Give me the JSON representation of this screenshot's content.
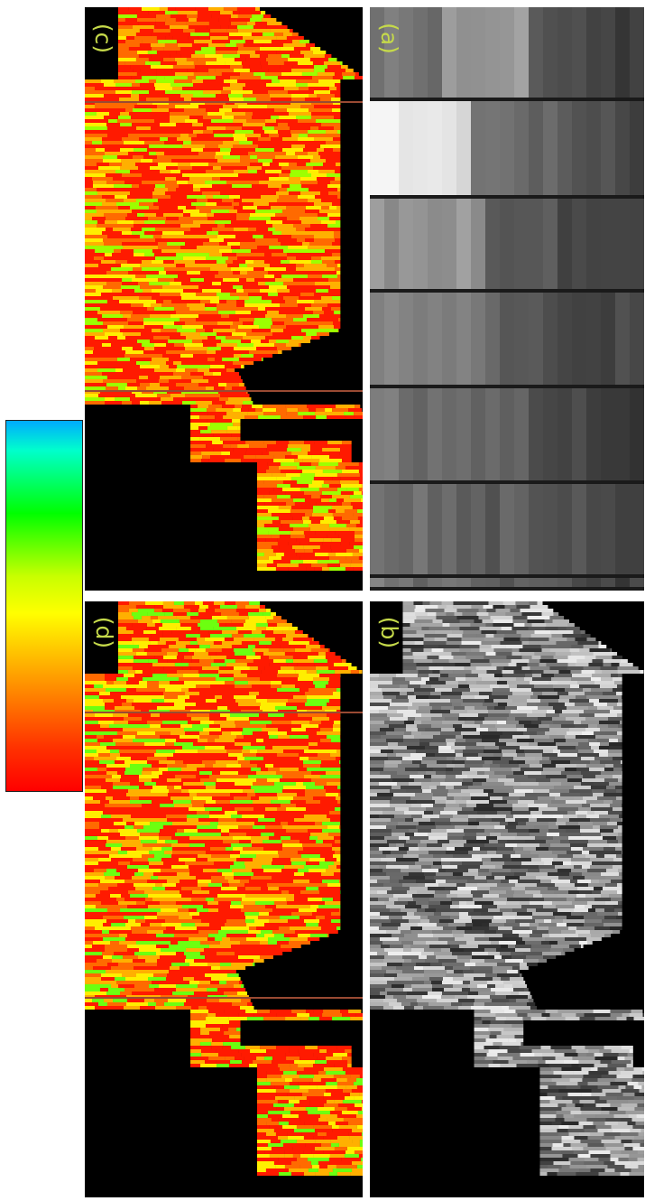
{
  "figure": {
    "panels": [
      {
        "id": "c",
        "label": "(c)",
        "kind": "color-map"
      },
      {
        "id": "a",
        "label": "(a)",
        "kind": "grayscale-raw"
      },
      {
        "id": "d",
        "label": "(d)",
        "kind": "color-map"
      },
      {
        "id": "b",
        "label": "(b)",
        "kind": "grayscale-map"
      }
    ],
    "colorbar": {
      "orientation": "vertical",
      "stops": [
        "#ff0000",
        "#ff3300",
        "#ff9900",
        "#ffff00",
        "#c8ff00",
        "#00ff00",
        "#00ffcc",
        "#00aaff"
      ],
      "labels": []
    },
    "colors": {
      "background": "#000000",
      "label_color": "#c5d94a",
      "separator": "#ffffff"
    }
  }
}
